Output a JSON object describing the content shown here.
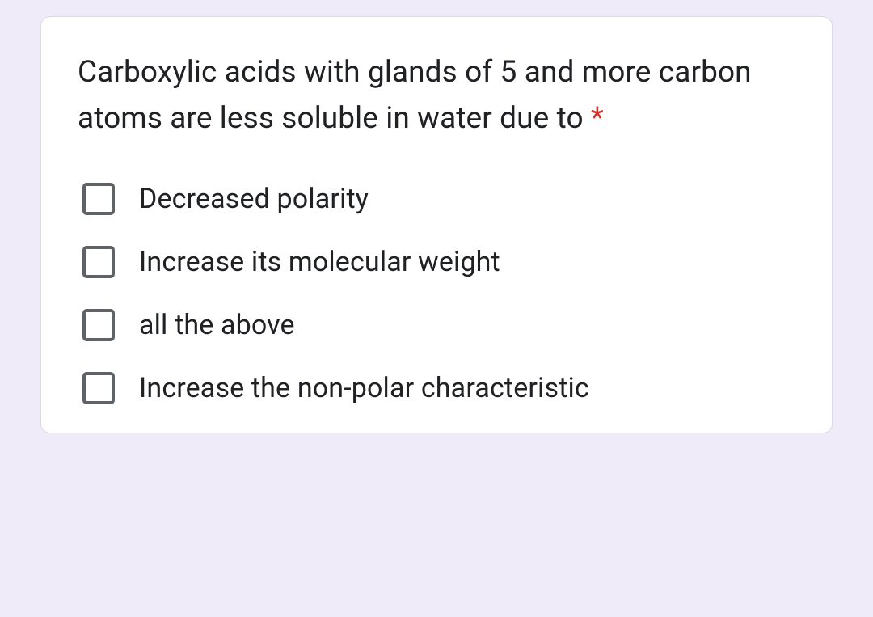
{
  "question": {
    "text": "Carboxylic acids with glands of 5 and more carbon atoms are less soluble in water due to",
    "required_marker": " *",
    "options": [
      {
        "label": "Decreased polarity",
        "checked": false
      },
      {
        "label": "Increase its molecular weight",
        "checked": false
      },
      {
        "label": "all the above",
        "checked": false
      },
      {
        "label": "Increase the non-polar characteristic",
        "checked": false
      }
    ]
  },
  "colors": {
    "page_background": "#f0ebf8",
    "card_background": "#ffffff",
    "card_border": "#dadce0",
    "text": "#202124",
    "checkbox_border": "#5f6368",
    "required": "#d93025"
  },
  "typography": {
    "question_fontsize": 37,
    "option_fontsize": 34,
    "font_family": "Roboto, Arial, sans-serif"
  },
  "layout": {
    "card_border_radius": 12,
    "checkbox_size": 40,
    "checkbox_border_width": 4,
    "checkbox_radius": 5,
    "option_gap": 38
  }
}
